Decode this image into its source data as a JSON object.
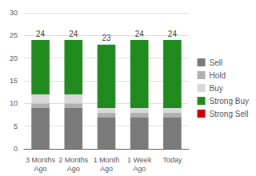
{
  "chart_data": {
    "type": "bar",
    "stacked": true,
    "categories": [
      "3 Months\nAgo",
      "2 Months\nAgo",
      "1 Month\nAgo",
      "1 Week\nAgo",
      "Today"
    ],
    "series": [
      {
        "name": "Sell",
        "color": "#7a7a7a",
        "values": [
          9,
          9,
          7,
          7,
          7
        ]
      },
      {
        "name": "Hold",
        "color": "#b0b0b0",
        "values": [
          1,
          1,
          1,
          1,
          1
        ]
      },
      {
        "name": "Buy",
        "color": "#d8d8d8",
        "values": [
          2,
          2,
          1,
          1,
          1
        ]
      },
      {
        "name": "Strong Buy",
        "color": "#1f8b1f",
        "values": [
          12,
          12,
          14,
          15,
          15
        ]
      },
      {
        "name": "Strong Sell",
        "color": "#cc0000",
        "values": [
          0,
          0,
          0,
          0,
          0
        ]
      }
    ],
    "totals": [
      24,
      24,
      23,
      24,
      24
    ],
    "ylim": [
      0,
      30
    ],
    "yticks": [
      0,
      5,
      10,
      15,
      20,
      25,
      30
    ],
    "grid": true,
    "legend": "right"
  }
}
